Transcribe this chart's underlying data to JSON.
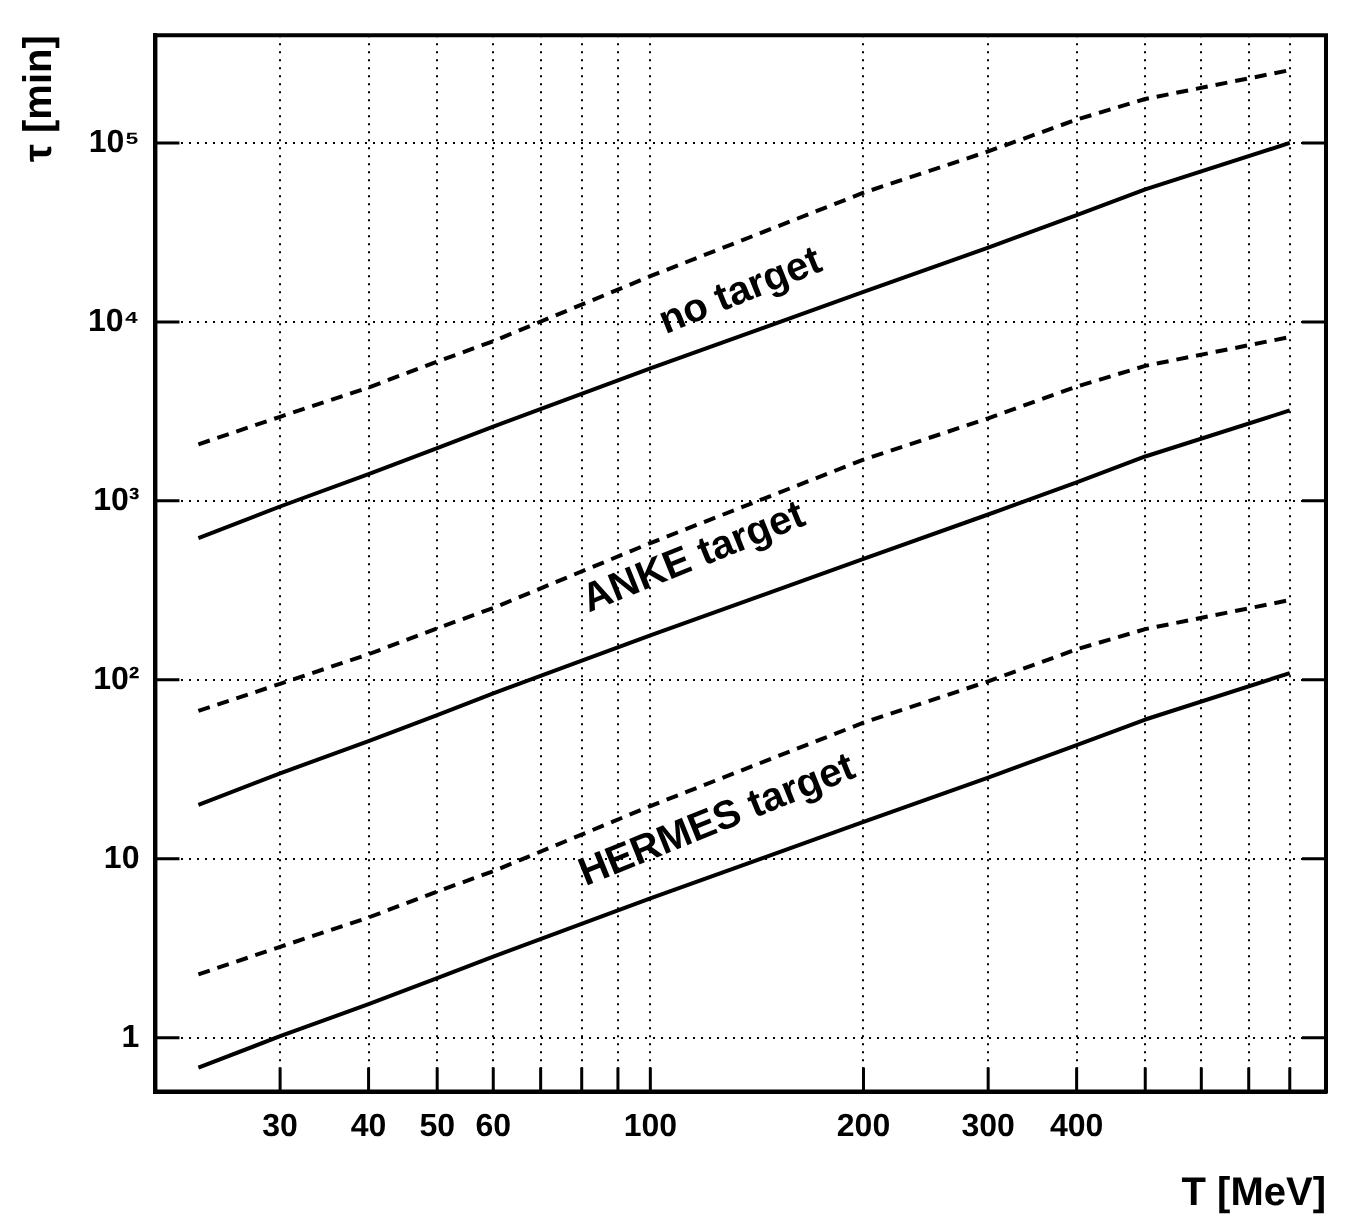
{
  "chart_data": {
    "type": "line",
    "xlabel": "T [MeV]",
    "ylabel": "τ [min]",
    "log": "xy",
    "grid": true,
    "xlim": [
      20,
      900
    ],
    "ylim": [
      0.5,
      400000
    ],
    "xticks": [
      30,
      40,
      50,
      60,
      {
        "value": 70,
        "label": null
      },
      {
        "value": 80,
        "label": null
      },
      {
        "value": 90,
        "label": null
      },
      100,
      200,
      300,
      400,
      {
        "value": 500,
        "label": null
      },
      {
        "value": 600,
        "label": null
      },
      {
        "value": 700,
        "label": null
      },
      {
        "value": 800,
        "label": null
      }
    ],
    "yticks": [
      1,
      10,
      {
        "value": 100,
        "label": "10²"
      },
      {
        "value": 1000,
        "label": "10³"
      },
      {
        "value": 10000,
        "label": "10⁴"
      },
      {
        "value": 100000,
        "label": "10⁵"
      }
    ],
    "x": [
      23,
      30,
      40,
      50,
      60,
      100,
      200,
      300,
      400,
      500,
      800
    ],
    "series": [
      {
        "color": "#000000",
        "line_style": "solid",
        "values": [
          620,
          930,
          1410,
          1970,
          2600,
          5500,
          14700,
          26000,
          39500,
          55000,
          100000
        ]
      },
      {
        "color": "#000000",
        "line_style": "dashed",
        "values": [
          2070,
          2950,
          4300,
          6000,
          7800,
          18000,
          52700,
          89700,
          135000,
          176000,
          255000
        ]
      },
      {
        "color": "#000000",
        "line_style": "solid",
        "values": [
          20,
          30,
          45.5,
          63.5,
          84,
          177,
          474,
          839,
          1270,
          1770,
          3200
        ]
      },
      {
        "color": "#000000",
        "line_style": "dashed",
        "values": [
          67,
          95,
          139,
          194,
          252,
          581,
          1700,
          2890,
          4350,
          5680,
          8230
        ]
      },
      {
        "color": "#000000",
        "line_style": "solid",
        "values": [
          0.68,
          1.02,
          1.54,
          2.15,
          2.84,
          6.0,
          16.1,
          28.4,
          43.2,
          60,
          109
        ]
      },
      {
        "color": "#000000",
        "line_style": "dashed",
        "values": [
          2.26,
          3.22,
          4.7,
          6.56,
          8.52,
          19.7,
          57.6,
          98,
          148,
          192,
          279
        ]
      }
    ],
    "annotations": [
      "no target",
      "ANKE target",
      "HERMES target"
    ]
  }
}
